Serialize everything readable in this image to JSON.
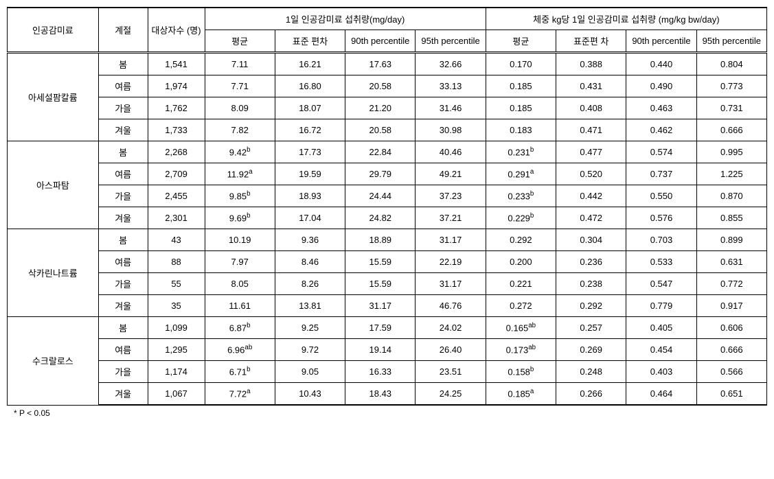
{
  "headers": {
    "sweetener": "인공감미료",
    "season": "계절",
    "subjects": "대상자수\n(명)",
    "daily_group": "1일 인공감미료 섭취량(mg/day)",
    "bw_group": "체중 kg당 1일 인공감미료 섭취량\n(mg/kg bw/day)",
    "mean": "평균",
    "sd": "표준\n편차",
    "sd2": "표준편\n차",
    "p90": "90th\npercentile",
    "p95": "95th\npercentile"
  },
  "groups": [
    {
      "name": "아세설팜칼륨",
      "rows": [
        {
          "season": "봄",
          "n": "1,541",
          "d_mean": "7.11",
          "d_sd": "16.21",
          "d_p90": "17.63",
          "d_p95": "32.66",
          "b_mean": "0.170",
          "b_sd": "0.388",
          "b_p90": "0.440",
          "b_p95": "0.804"
        },
        {
          "season": "여름",
          "n": "1,974",
          "d_mean": "7.71",
          "d_sd": "16.80",
          "d_p90": "20.58",
          "d_p95": "33.13",
          "b_mean": "0.185",
          "b_sd": "0.431",
          "b_p90": "0.490",
          "b_p95": "0.773"
        },
        {
          "season": "가을",
          "n": "1,762",
          "d_mean": "8.09",
          "d_sd": "18.07",
          "d_p90": "21.20",
          "d_p95": "31.46",
          "b_mean": "0.185",
          "b_sd": "0.408",
          "b_p90": "0.463",
          "b_p95": "0.731"
        },
        {
          "season": "겨울",
          "n": "1,733",
          "d_mean": "7.82",
          "d_sd": "16.72",
          "d_p90": "20.58",
          "d_p95": "30.98",
          "b_mean": "0.183",
          "b_sd": "0.471",
          "b_p90": "0.462",
          "b_p95": "0.666"
        }
      ]
    },
    {
      "name": "아스파탐",
      "rows": [
        {
          "season": "봄",
          "n": "2,268",
          "d_mean": "9.42",
          "d_mean_sup": "b",
          "d_sd": "17.73",
          "d_p90": "22.84",
          "d_p95": "40.46",
          "b_mean": "0.231",
          "b_mean_sup": "b",
          "b_sd": "0.477",
          "b_p90": "0.574",
          "b_p95": "0.995"
        },
        {
          "season": "여름",
          "n": "2,709",
          "d_mean": "11.92",
          "d_mean_sup": "a",
          "d_sd": "19.59",
          "d_p90": "29.79",
          "d_p95": "49.21",
          "b_mean": "0.291",
          "b_mean_sup": "a",
          "b_sd": "0.520",
          "b_p90": "0.737",
          "b_p95": "1.225"
        },
        {
          "season": "가을",
          "n": "2,455",
          "d_mean": "9.85",
          "d_mean_sup": "b",
          "d_sd": "18.93",
          "d_p90": "24.44",
          "d_p95": "37.23",
          "b_mean": "0.233",
          "b_mean_sup": "b",
          "b_sd": "0.442",
          "b_p90": "0.550",
          "b_p95": "0.870"
        },
        {
          "season": "겨울",
          "n": "2,301",
          "d_mean": "9.69",
          "d_mean_sup": "b",
          "d_sd": "17.04",
          "d_p90": "24.82",
          "d_p95": "37.21",
          "b_mean": "0.229",
          "b_mean_sup": "b",
          "b_sd": "0.472",
          "b_p90": "0.576",
          "b_p95": "0.855"
        }
      ]
    },
    {
      "name": "삭카린나트륨",
      "rows": [
        {
          "season": "봄",
          "n": "43",
          "d_mean": "10.19",
          "d_sd": "9.36",
          "d_p90": "18.89",
          "d_p95": "31.17",
          "b_mean": "0.292",
          "b_sd": "0.304",
          "b_p90": "0.703",
          "b_p95": "0.899"
        },
        {
          "season": "여름",
          "n": "88",
          "d_mean": "7.97",
          "d_sd": "8.46",
          "d_p90": "15.59",
          "d_p95": "22.19",
          "b_mean": "0.200",
          "b_sd": "0.236",
          "b_p90": "0.533",
          "b_p95": "0.631"
        },
        {
          "season": "가을",
          "n": "55",
          "d_mean": "8.05",
          "d_sd": "8.26",
          "d_p90": "15.59",
          "d_p95": "31.17",
          "b_mean": "0.221",
          "b_sd": "0.238",
          "b_p90": "0.547",
          "b_p95": "0.772"
        },
        {
          "season": "겨울",
          "n": "35",
          "d_mean": "11.61",
          "d_sd": "13.81",
          "d_p90": "31.17",
          "d_p95": "46.76",
          "b_mean": "0.272",
          "b_sd": "0.292",
          "b_p90": "0.779",
          "b_p95": "0.917"
        }
      ]
    },
    {
      "name": "수크랄로스",
      "rows": [
        {
          "season": "봄",
          "n": "1,099",
          "d_mean": "6.87",
          "d_mean_sup": "b",
          "d_sd": "9.25",
          "d_p90": "17.59",
          "d_p95": "24.02",
          "b_mean": "0.165",
          "b_mean_sup": "ab",
          "b_sd": "0.257",
          "b_p90": "0.405",
          "b_p95": "0.606"
        },
        {
          "season": "여름",
          "n": "1,295",
          "d_mean": "6.96",
          "d_mean_sup": "ab",
          "d_sd": "9.72",
          "d_p90": "19.14",
          "d_p95": "26.40",
          "b_mean": "0.173",
          "b_mean_sup": "ab",
          "b_sd": "0.269",
          "b_p90": "0.454",
          "b_p95": "0.666"
        },
        {
          "season": "가을",
          "n": "1,174",
          "d_mean": "6.71",
          "d_mean_sup": "b",
          "d_sd": "9.05",
          "d_p90": "16.33",
          "d_p95": "23.51",
          "b_mean": "0.158",
          "b_mean_sup": "b",
          "b_sd": "0.248",
          "b_p90": "0.403",
          "b_p95": "0.566"
        },
        {
          "season": "겨울",
          "n": "1,067",
          "d_mean": "7.72",
          "d_mean_sup": "a",
          "d_sd": "10.43",
          "d_p90": "18.43",
          "d_p95": "24.25",
          "b_mean": "0.185",
          "b_mean_sup": "a",
          "b_sd": "0.266",
          "b_p90": "0.464",
          "b_p95": "0.651"
        }
      ]
    }
  ],
  "footnote": "* P < 0.05"
}
